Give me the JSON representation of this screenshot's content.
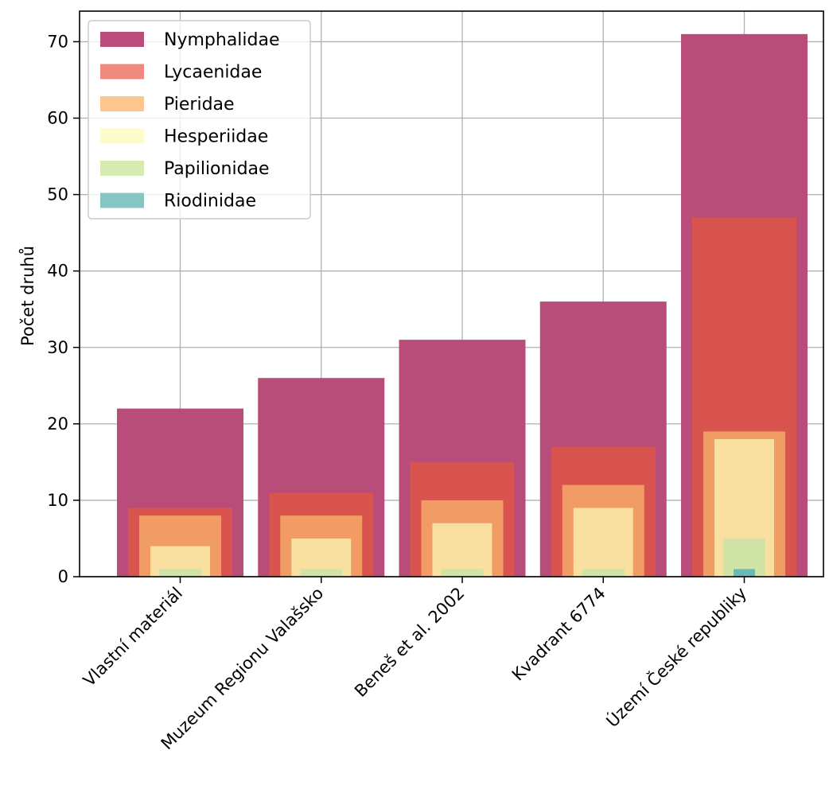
{
  "chart_data": {
    "type": "bar",
    "title": "",
    "xlabel": "",
    "ylabel": "Počet druhů",
    "ylim": [
      0,
      74
    ],
    "yticks": [
      0,
      10,
      20,
      30,
      40,
      50,
      60,
      70
    ],
    "grid": true,
    "legend_position": "top-left",
    "categories": [
      "Vlastní materiál",
      "Muzeum Regionu Valašsko",
      "Beneš et al. 2002",
      "Kvadrant 6774",
      "Území České republiky"
    ],
    "series": [
      {
        "name": "Nymphalidae",
        "color": "#b94d7a",
        "values": [
          22,
          26,
          31,
          36,
          71
        ]
      },
      {
        "name": "Lycaenidae",
        "color": "#d9534f",
        "values": [
          9,
          11,
          15,
          17,
          47
        ]
      },
      {
        "name": "Pieridae",
        "color": "#f09c64",
        "values": [
          8,
          8,
          10,
          12,
          19
        ]
      },
      {
        "name": "Hesperiidae",
        "color": "#f9dfa0",
        "values": [
          4,
          5,
          7,
          9,
          18
        ]
      },
      {
        "name": "Papilionidae",
        "color": "#cfe4a6",
        "values": [
          1,
          1,
          1,
          1,
          5
        ]
      },
      {
        "name": "Riodinidae",
        "color": "#6cb7b5",
        "values": [
          0,
          0,
          0,
          0,
          1
        ]
      }
    ],
    "legend_swatches": [
      "#b94d7a",
      "#f08a7c",
      "#fdc68e",
      "#fefccc",
      "#d6eab3",
      "#87c5c3"
    ]
  }
}
